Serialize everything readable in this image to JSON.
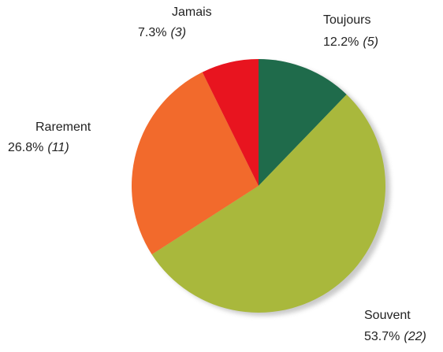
{
  "chart_data": {
    "type": "pie",
    "categories": [
      "Toujours",
      "Souvent",
      "Rarement",
      "Jamais"
    ],
    "values": [
      12.2,
      53.7,
      26.8,
      7.3
    ],
    "value_labels": [
      "12.2%",
      "53.7%",
      "26.8%",
      "7.3%"
    ],
    "count_labels": [
      "(5)",
      "(22)",
      "(11)",
      "(3)"
    ],
    "colors": [
      "#1f6b4b",
      "#a9b83c",
      "#f26a2c",
      "#e8141f"
    ]
  }
}
